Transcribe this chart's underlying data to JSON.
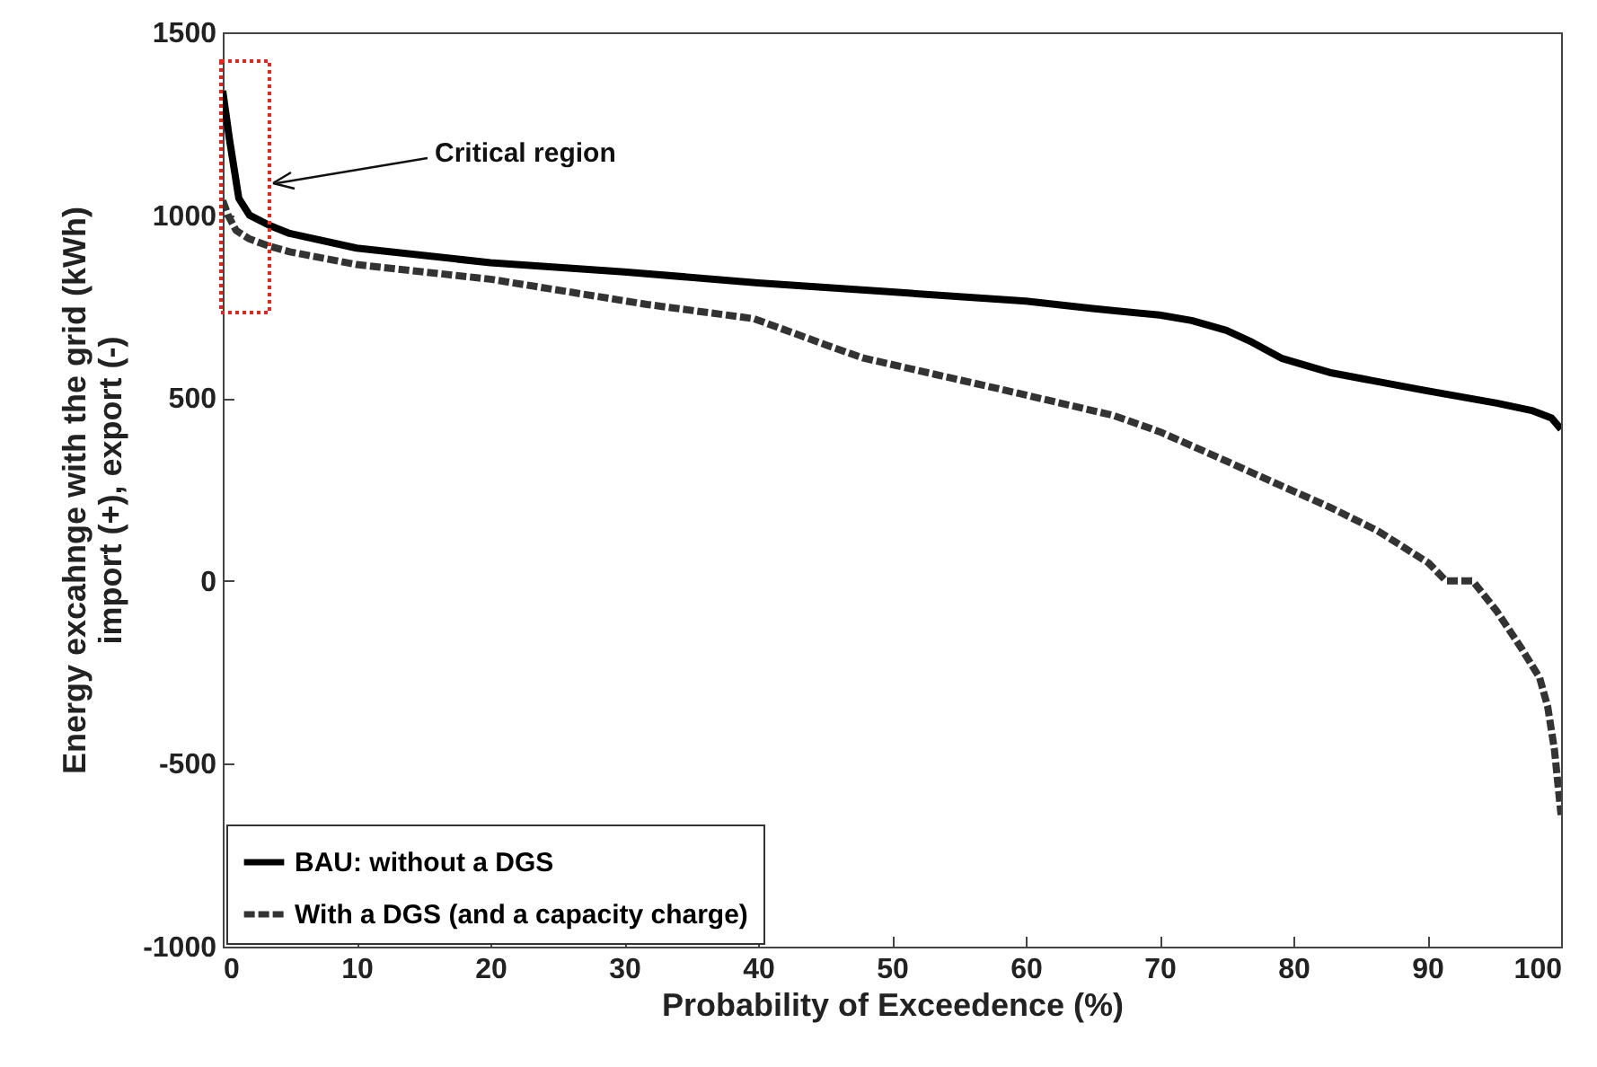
{
  "chart_data": {
    "type": "line",
    "xlabel": "Probability of Exceedence (%)",
    "ylabel": "Energy excahnge with the grid (kWh)\nimport (+), export (-)",
    "xlim": [
      0,
      100
    ],
    "ylim": [
      -1000,
      1500
    ],
    "xticks": [
      0,
      10,
      20,
      30,
      40,
      50,
      60,
      70,
      80,
      90,
      100
    ],
    "yticks": [
      -1000,
      -500,
      0,
      500,
      1000,
      1500
    ],
    "grid": false,
    "legend": "bottom left",
    "annotations": [
      "Critical region"
    ],
    "series": [
      {
        "name": "BAU: without a DGS",
        "color": "#000000",
        "line_style": "solid",
        "x": [
          0,
          0.5,
          1.2,
          2,
          3.5,
          5,
          10,
          20,
          30,
          40,
          50,
          60,
          65,
          70,
          72.4,
          75,
          76.9,
          79.1,
          82.7,
          86.3,
          89.8,
          95.2,
          97.9,
          99.3,
          100
        ],
        "values": [
          1340,
          1208,
          1046,
          1000,
          972,
          950,
          910,
          870,
          845,
          815,
          790,
          765,
          745,
          727,
          712,
          685,
          653,
          609,
          570,
          545,
          521,
          486,
          465,
          445,
          415
        ]
      },
      {
        "name": "With a DGS (and a capacity charge)",
        "color": "#333333",
        "line_style": "dashed",
        "x": [
          0,
          0.4,
          1,
          2,
          3.5,
          5,
          10,
          20,
          31.7,
          39.7,
          45.1,
          47.8,
          53.2,
          58.5,
          66.6,
          70,
          74.6,
          79.1,
          82.7,
          86.3,
          90.1,
          91.4,
          93.4,
          95.2,
          97,
          98.4,
          99,
          99.5,
          100
        ],
        "values": [
          1040,
          1000,
          958,
          935,
          915,
          900,
          865,
          825,
          756,
          717,
          645,
          610,
          565,
          521,
          452,
          408,
          334,
          260,
          202,
          137,
          49,
          0,
          0,
          -83,
          -182,
          -265,
          -344,
          -460,
          -640
        ]
      }
    ]
  }
}
